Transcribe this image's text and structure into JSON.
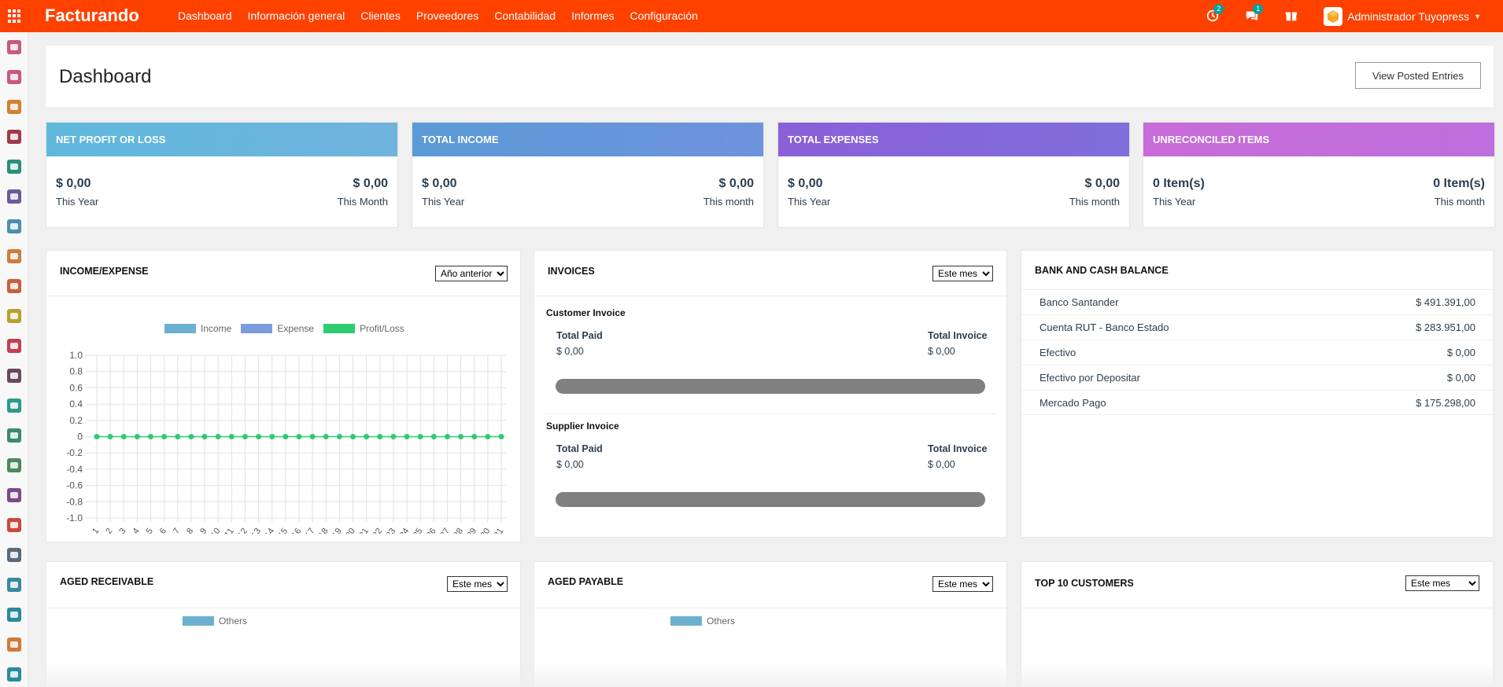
{
  "app": {
    "brand": "Facturando"
  },
  "topnav": [
    "Dashboard",
    "Información general",
    "Clientes",
    "Proveedores",
    "Contabilidad",
    "Informes",
    "Configuración"
  ],
  "systray": {
    "activity_count": "2",
    "messages_count": "1",
    "user_name": "Administrador Tuyopress"
  },
  "header": {
    "title": "Dashboard",
    "view_posted_label": "View Posted Entries"
  },
  "kpis": [
    {
      "title": "NET PROFIT OR LOSS",
      "left_value": "$ 0,00",
      "left_caption": "This Year",
      "right_value": "$ 0,00",
      "right_caption": "This Month",
      "color_from": "#5fb8dc",
      "color_to": "#6fb3dd"
    },
    {
      "title": "TOTAL INCOME",
      "left_value": "$ 0,00",
      "left_caption": "This Year",
      "right_value": "$ 0,00",
      "right_caption": "This month",
      "color_from": "#5a9ad6",
      "color_to": "#6f93dd"
    },
    {
      "title": "TOTAL EXPENSES",
      "left_value": "$ 0,00",
      "left_caption": "This Year",
      "right_value": "$ 0,00",
      "right_caption": "This month",
      "color_from": "#8a5fd8",
      "color_to": "#7f6fdb"
    },
    {
      "title": "UNRECONCILED ITEMS",
      "left_value": "0 Item(s)",
      "left_caption": "This Year",
      "right_value": "0 Item(s)",
      "right_caption": "This month",
      "color_from": "#c86cd8",
      "color_to": "#bd6fdd"
    }
  ],
  "income_expense": {
    "title": "INCOME/EXPENSE",
    "filter": "Año anterior",
    "legend": [
      {
        "label": "Income",
        "color": "#6cb0cf"
      },
      {
        "label": "Expense",
        "color": "#7a9edc"
      },
      {
        "label": "Profit/Loss",
        "color": "#2ecc71"
      }
    ]
  },
  "chart_data": {
    "type": "line",
    "x": [
      "1",
      "2",
      "3",
      "4",
      "5",
      "6",
      "7",
      "8",
      "9",
      "10",
      "11",
      "12",
      "13",
      "14",
      "15",
      "16",
      "17",
      "18",
      "19",
      "20",
      "21",
      "22",
      "23",
      "24",
      "25",
      "26",
      "27",
      "28",
      "29",
      "30",
      "31"
    ],
    "series": [
      {
        "name": "Profit/Loss",
        "values": [
          0,
          0,
          0,
          0,
          0,
          0,
          0,
          0,
          0,
          0,
          0,
          0,
          0,
          0,
          0,
          0,
          0,
          0,
          0,
          0,
          0,
          0,
          0,
          0,
          0,
          0,
          0,
          0,
          0,
          0,
          0
        ]
      }
    ],
    "y_ticks": [
      "1.0",
      "0.8",
      "0.6",
      "0.4",
      "0.2",
      "0",
      "-0.2",
      "-0.4",
      "-0.6",
      "-0.8",
      "-1.0"
    ],
    "ylim": [
      -1.0,
      1.0
    ],
    "grid": true,
    "legend_position": "top"
  },
  "invoices": {
    "title": "INVOICES",
    "filter": "Este mes",
    "customer": {
      "label": "Customer Invoice",
      "paid_label": "Total Paid",
      "paid_value": "$ 0,00",
      "total_label": "Total Invoice",
      "total_value": "$ 0,00"
    },
    "supplier": {
      "label": "Supplier Invoice",
      "paid_label": "Total Paid",
      "paid_value": "$ 0,00",
      "total_label": "Total Invoice",
      "total_value": "$ 0,00"
    }
  },
  "bank": {
    "title": "BANK AND CASH BALANCE",
    "rows": [
      {
        "name": "Banco Santander",
        "amount": "$ 491.391,00"
      },
      {
        "name": "Cuenta RUT - Banco Estado",
        "amount": "$ 283.951,00"
      },
      {
        "name": "Efectivo",
        "amount": "$ 0,00"
      },
      {
        "name": "Efectivo por Depositar",
        "amount": "$ 0,00"
      },
      {
        "name": "Mercado Pago",
        "amount": "$ 175.298,00"
      }
    ]
  },
  "aged_receivable": {
    "title": "AGED RECEIVABLE",
    "filter": "Este mes",
    "legend": "Others"
  },
  "aged_payable": {
    "title": "AGED PAYABLE",
    "filter": "Este mes",
    "legend": "Others"
  },
  "top_customers": {
    "title": "TOP 10 CUSTOMERS",
    "filter": "Este mes"
  },
  "sidebar_icons": [
    {
      "name": "discuss-icon",
      "color": "#c85a7a"
    },
    {
      "name": "dashboard-icon",
      "color": "#c85a7a"
    },
    {
      "name": "chart-icon",
      "color": "#d2812e"
    },
    {
      "name": "inventory-icon",
      "color": "#a03a4a"
    },
    {
      "name": "contacts-icon",
      "color": "#2a8f7a"
    },
    {
      "name": "crm-icon",
      "color": "#6a5a9a"
    },
    {
      "name": "payments-icon",
      "color": "#4a8fb0"
    },
    {
      "name": "invoicing-icon",
      "color": "#d07a3a"
    },
    {
      "name": "website-icon",
      "color": "#c8603a"
    },
    {
      "name": "calendar-icon",
      "color": "#b8a030"
    },
    {
      "name": "sales-icon",
      "color": "#c04050"
    },
    {
      "name": "pos-icon",
      "color": "#6a4a5a"
    },
    {
      "name": "employees-icon",
      "color": "#2a9a8a"
    },
    {
      "name": "tools-icon",
      "color": "#3a8a6a"
    },
    {
      "name": "fleet-icon",
      "color": "#4a8a5a"
    },
    {
      "name": "apps-puzzle-icon",
      "color": "#7a4a8a"
    },
    {
      "name": "timer-icon",
      "color": "#c84a3a"
    },
    {
      "name": "email-marketing-icon",
      "color": "#5a6a7a"
    },
    {
      "name": "documents-icon",
      "color": "#3a8aa0"
    },
    {
      "name": "tags-icon",
      "color": "#2a8a9a"
    },
    {
      "name": "notes-icon",
      "color": "#d07a3a"
    },
    {
      "name": "team-icon",
      "color": "#2a8aa0"
    }
  ]
}
